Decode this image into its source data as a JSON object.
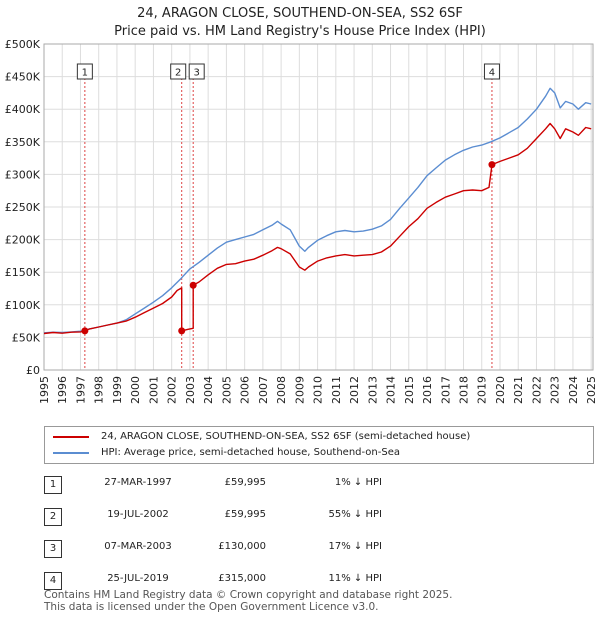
{
  "chart_data": {
    "type": "line",
    "title": "24, ARAGON CLOSE, SOUTHEND-ON-SEA, SS2 6SF",
    "subtitle": "Price paid vs. HM Land Registry's House Price Index (HPI)",
    "xlim": [
      1995,
      2025.1
    ],
    "ylim": [
      0,
      500000
    ],
    "y_ticks": [
      0,
      50000,
      100000,
      150000,
      200000,
      250000,
      300000,
      350000,
      400000,
      450000,
      500000
    ],
    "y_tick_labels": [
      "£0",
      "£50K",
      "£100K",
      "£150K",
      "£200K",
      "£250K",
      "£300K",
      "£350K",
      "£400K",
      "£450K",
      "£500K"
    ],
    "x_ticks": [
      1995,
      1996,
      1997,
      1998,
      1999,
      2000,
      2001,
      2002,
      2003,
      2004,
      2005,
      2006,
      2007,
      2008,
      2009,
      2010,
      2011,
      2012,
      2013,
      2014,
      2015,
      2016,
      2017,
      2018,
      2019,
      2020,
      2021,
      2022,
      2023,
      2024,
      2025
    ],
    "x_tick_labels": [
      "1995",
      "1996",
      "1997",
      "1998",
      "1999",
      "2000",
      "2001",
      "2002",
      "2003",
      "2004",
      "2005",
      "2006",
      "2007",
      "2008",
      "2009",
      "2010",
      "2011",
      "2012",
      "2013",
      "2014",
      "2015",
      "2016",
      "2017",
      "2018",
      "2019",
      "2020",
      "2021",
      "2022",
      "2023",
      "2024",
      "2025"
    ],
    "grid": true,
    "series": [
      {
        "name": "24, ARAGON CLOSE, SOUTHEND-ON-SEA, SS2 6SF (semi-detached house)",
        "color": "#cc0000",
        "x": [
          1995.0,
          1995.5,
          1996.0,
          1996.5,
          1997.0,
          1997.24,
          1997.5,
          1998.0,
          1998.5,
          1999.0,
          1999.5,
          2000.0,
          2000.5,
          2001.0,
          2001.5,
          2002.0,
          2002.3,
          2002.55,
          2002.55,
          2002.7,
          2002.9,
          2003.0,
          2003.18,
          2003.18,
          2003.5,
          2004.0,
          2004.5,
          2005.0,
          2005.5,
          2006.0,
          2006.5,
          2007.0,
          2007.5,
          2007.8,
          2008.0,
          2008.5,
          2009.0,
          2009.3,
          2009.5,
          2010.0,
          2010.5,
          2011.0,
          2011.5,
          2012.0,
          2012.5,
          2013.0,
          2013.5,
          2014.0,
          2014.5,
          2015.0,
          2015.5,
          2016.0,
          2016.5,
          2017.0,
          2017.5,
          2018.0,
          2018.5,
          2019.0,
          2019.4,
          2019.56,
          2019.56,
          2020.0,
          2020.5,
          2021.0,
          2021.5,
          2022.0,
          2022.5,
          2022.75,
          2023.0,
          2023.3,
          2023.6,
          2024.0,
          2024.3,
          2024.7,
          2025.0
        ],
        "values": [
          56000,
          57500,
          56500,
          58000,
          58500,
          59995,
          63000,
          66000,
          69000,
          72000,
          75000,
          81000,
          88000,
          95000,
          102000,
          112000,
          122000,
          126000,
          59995,
          61000,
          62500,
          63000,
          64000,
          130000,
          135000,
          146000,
          156000,
          162000,
          163000,
          167000,
          170000,
          176000,
          183000,
          188000,
          186000,
          178000,
          158000,
          153000,
          158000,
          167000,
          172000,
          175000,
          177000,
          175000,
          176000,
          177000,
          181000,
          190000,
          205000,
          220000,
          232000,
          248000,
          257000,
          265000,
          270000,
          275000,
          276000,
          275000,
          280000,
          315000,
          315000,
          320000,
          325000,
          330000,
          340000,
          355000,
          370000,
          378000,
          370000,
          355000,
          370000,
          365000,
          360000,
          372000,
          370000
        ]
      },
      {
        "name": "HPI: Average price, semi-detached house, Southend-on-Sea",
        "color": "#5b8dd1",
        "x": [
          1995.0,
          1995.5,
          1996.0,
          1996.5,
          1997.0,
          1997.5,
          1998.0,
          1998.5,
          1999.0,
          1999.5,
          2000.0,
          2000.5,
          2001.0,
          2001.5,
          2002.0,
          2002.5,
          2003.0,
          2003.5,
          2004.0,
          2004.5,
          2005.0,
          2005.5,
          2006.0,
          2006.5,
          2007.0,
          2007.5,
          2007.8,
          2008.0,
          2008.5,
          2009.0,
          2009.3,
          2009.5,
          2010.0,
          2010.5,
          2011.0,
          2011.5,
          2012.0,
          2012.5,
          2013.0,
          2013.5,
          2014.0,
          2014.5,
          2015.0,
          2015.5,
          2016.0,
          2016.5,
          2017.0,
          2017.5,
          2018.0,
          2018.5,
          2019.0,
          2019.5,
          2020.0,
          2020.5,
          2021.0,
          2021.5,
          2022.0,
          2022.5,
          2022.75,
          2023.0,
          2023.3,
          2023.6,
          2024.0,
          2024.3,
          2024.7,
          2025.0
        ],
        "values": [
          57000,
          58000,
          57500,
          58500,
          59500,
          63000,
          66000,
          69000,
          72000,
          77000,
          86000,
          95000,
          104000,
          114000,
          126000,
          140000,
          155000,
          165000,
          176000,
          187000,
          196000,
          200000,
          204000,
          208000,
          215000,
          222000,
          228000,
          224000,
          215000,
          190000,
          182000,
          188000,
          199000,
          206000,
          212000,
          214000,
          212000,
          213000,
          216000,
          221000,
          231000,
          248000,
          264000,
          280000,
          298000,
          310000,
          322000,
          330000,
          337000,
          342000,
          345000,
          350000,
          356000,
          364000,
          372000,
          385000,
          400000,
          420000,
          432000,
          425000,
          402000,
          412000,
          408000,
          400000,
          410000,
          408000
        ]
      }
    ],
    "sale_markers": [
      {
        "label": "1",
        "x": 1997.24,
        "y": 59995
      },
      {
        "label": "2",
        "x": 2002.55,
        "y": 59995
      },
      {
        "label": "3",
        "x": 2003.18,
        "y": 130000
      },
      {
        "label": "4",
        "x": 2019.56,
        "y": 315000
      }
    ]
  },
  "legend": {
    "line1": "24, ARAGON CLOSE, SOUTHEND-ON-SEA, SS2 6SF (semi-detached house)",
    "line2": "HPI: Average price, semi-detached house, Southend-on-Sea"
  },
  "sales": [
    {
      "num": "1",
      "date": "27-MAR-1997",
      "price": "£59,995",
      "hpi": "1% ↓ HPI"
    },
    {
      "num": "2",
      "date": "19-JUL-2002",
      "price": "£59,995",
      "hpi": "55% ↓ HPI"
    },
    {
      "num": "3",
      "date": "07-MAR-2003",
      "price": "£130,000",
      "hpi": "17% ↓ HPI"
    },
    {
      "num": "4",
      "date": "25-JUL-2019",
      "price": "£315,000",
      "hpi": "11% ↓ HPI"
    }
  ],
  "footer": {
    "line1": "Contains HM Land Registry data © Crown copyright and database right 2025.",
    "line2": "This data is licensed under the Open Government Licence v3.0."
  }
}
